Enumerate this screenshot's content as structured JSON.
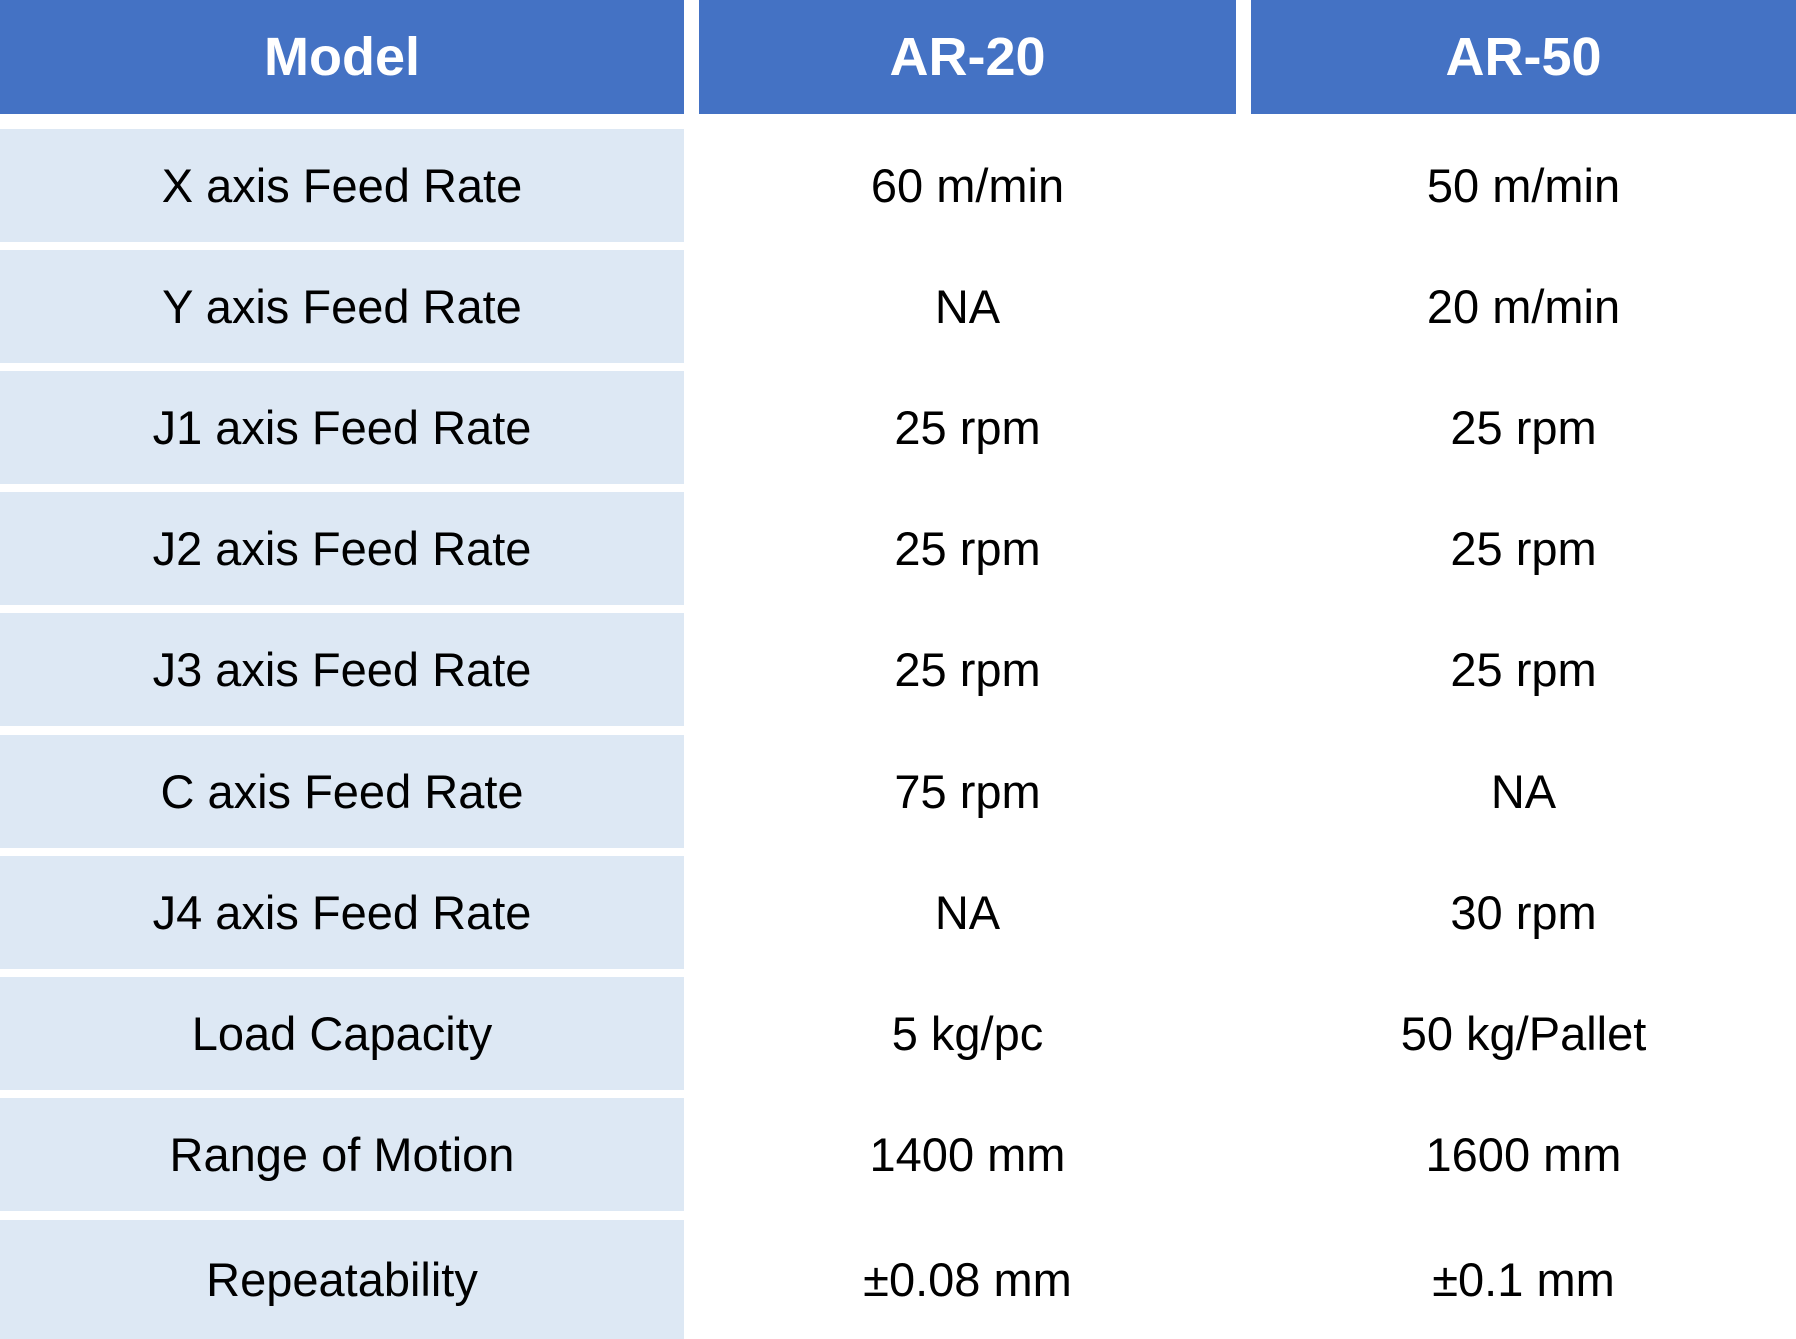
{
  "header": {
    "model_label": "Model",
    "col1": "AR-20",
    "col2": "AR-50"
  },
  "rows": [
    {
      "label": "X axis Feed Rate",
      "ar20": "60 m/min",
      "ar50": "50 m/min"
    },
    {
      "label": "Y axis Feed Rate",
      "ar20": "NA",
      "ar50": "20 m/min"
    },
    {
      "label": "J1 axis Feed Rate",
      "ar20": "25 rpm",
      "ar50": "25 rpm"
    },
    {
      "label": "J2 axis Feed Rate",
      "ar20": "25 rpm",
      "ar50": "25 rpm"
    },
    {
      "label": "J3 axis Feed Rate",
      "ar20": "25 rpm",
      "ar50": "25 rpm"
    },
    {
      "label": "C axis Feed Rate",
      "ar20": "75 rpm",
      "ar50": "NA"
    },
    {
      "label": "J4 axis Feed Rate",
      "ar20": "NA",
      "ar50": "30 rpm"
    },
    {
      "label": "Load Capacity",
      "ar20": "5 kg/pc",
      "ar50": "50 kg/Pallet"
    },
    {
      "label": "Range of Motion",
      "ar20": "1400 mm",
      "ar50": "1600 mm"
    },
    {
      "label": "Repeatability",
      "ar20": "±0.08 mm",
      "ar50": "±0.1 mm"
    }
  ],
  "colors": {
    "header_bg": "#4472c4",
    "label_bg": "#dde8f4",
    "value_bg": "#ffffff"
  }
}
